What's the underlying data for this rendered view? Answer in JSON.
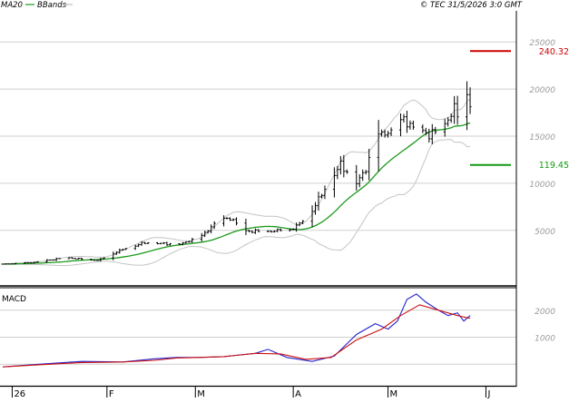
{
  "header": {
    "legend": [
      {
        "label": "MA20",
        "color": "#1a9a1a"
      },
      {
        "label": "BBands",
        "color": "#bdbdbd"
      }
    ],
    "copyright": "© TEC 31/5/2026 3:0 GMT"
  },
  "colors": {
    "grid": "#cfcfcf",
    "frame": "#000000",
    "price_bar": "#000000",
    "ma20": "#1a9a1a",
    "bbands": "#c4c4c4",
    "resistance": "#cc0000",
    "support": "#119911",
    "macd": "#2222cc",
    "signal": "#cc1111",
    "axis_text": "#9a9a9a"
  },
  "chart_data": [
    {
      "type": "ohlc",
      "panel": "price",
      "ylim": [
        -900,
        28300
      ],
      "y_ticks": [
        5000,
        10000,
        15000,
        20000,
        25000
      ],
      "y_tick_labels": [
        "5000",
        "10000",
        "15000",
        "20000",
        "25000"
      ],
      "grid": true,
      "x_ticks": [
        {
          "day": 3,
          "label": "26"
        },
        {
          "day": 33,
          "label": "F"
        },
        {
          "day": 61,
          "label": "M"
        },
        {
          "day": 92,
          "label": "A"
        },
        {
          "day": 122,
          "label": "M"
        },
        {
          "day": 153,
          "label": "J"
        }
      ],
      "levels": [
        {
          "name": "resistance",
          "value": 24032,
          "label": "240.32"
        },
        {
          "name": "support",
          "value": 11945,
          "label": "119.45"
        }
      ],
      "closes": [
        {
          "day": 0,
          "close": 1400
        },
        {
          "day": 10,
          "close": 1600
        },
        {
          "day": 20,
          "close": 2100
        },
        {
          "day": 30,
          "close": 1800
        },
        {
          "day": 38,
          "close": 3000
        },
        {
          "day": 45,
          "close": 3700
        },
        {
          "day": 56,
          "close": 3500
        },
        {
          "day": 63,
          "close": 4400
        },
        {
          "day": 68,
          "close": 6000
        },
        {
          "day": 72,
          "close": 6300
        },
        {
          "day": 77,
          "close": 4900
        },
        {
          "day": 85,
          "close": 4900
        },
        {
          "day": 92,
          "close": 5200
        },
        {
          "day": 97,
          "close": 6600
        },
        {
          "day": 103,
          "close": 10000
        },
        {
          "day": 107,
          "close": 12000
        },
        {
          "day": 112,
          "close": 10000
        },
        {
          "day": 115,
          "close": 11500
        },
        {
          "day": 118,
          "close": 15000
        },
        {
          "day": 123,
          "close": 15500
        },
        {
          "day": 127,
          "close": 16800
        },
        {
          "day": 131,
          "close": 15500
        },
        {
          "day": 135,
          "close": 15200
        },
        {
          "day": 139,
          "close": 15600
        },
        {
          "day": 143,
          "close": 18000
        },
        {
          "day": 145,
          "close": 16200
        },
        {
          "day": 147,
          "close": 19500
        },
        {
          "day": 148,
          "close": 18400
        }
      ]
    },
    {
      "type": "line",
      "panel": "macd",
      "title": "MACD",
      "ylim": [
        -700,
        2800
      ],
      "y_ticks": [
        1000,
        2000
      ],
      "y_tick_labels": [
        "1000",
        "2000"
      ],
      "series": [
        {
          "name": "macd",
          "points": [
            [
              0,
              -100
            ],
            [
              12,
              0
            ],
            [
              25,
              100
            ],
            [
              38,
              80
            ],
            [
              48,
              200
            ],
            [
              55,
              250
            ],
            [
              62,
              250
            ],
            [
              70,
              280
            ],
            [
              80,
              400
            ],
            [
              84,
              550
            ],
            [
              90,
              250
            ],
            [
              98,
              100
            ],
            [
              105,
              300
            ],
            [
              112,
              1100
            ],
            [
              118,
              1500
            ],
            [
              122,
              1300
            ],
            [
              125,
              1600
            ],
            [
              128,
              2400
            ],
            [
              131,
              2600
            ],
            [
              134,
              2300
            ],
            [
              138,
              2000
            ],
            [
              141,
              1800
            ],
            [
              144,
              1900
            ],
            [
              146,
              1600
            ],
            [
              148,
              1800
            ]
          ]
        },
        {
          "name": "signal",
          "points": [
            [
              0,
              -100
            ],
            [
              12,
              -20
            ],
            [
              25,
              60
            ],
            [
              38,
              80
            ],
            [
              48,
              140
            ],
            [
              55,
              230
            ],
            [
              62,
              250
            ],
            [
              70,
              280
            ],
            [
              80,
              400
            ],
            [
              88,
              380
            ],
            [
              96,
              180
            ],
            [
              104,
              250
            ],
            [
              112,
              900
            ],
            [
              120,
              1300
            ],
            [
              126,
              1800
            ],
            [
              132,
              2200
            ],
            [
              138,
              2000
            ],
            [
              144,
              1800
            ],
            [
              148,
              1700
            ]
          ]
        }
      ]
    }
  ]
}
